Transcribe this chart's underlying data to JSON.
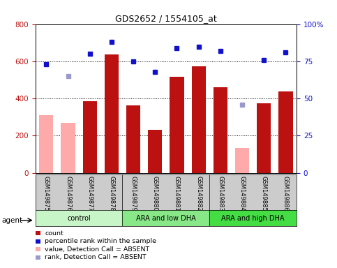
{
  "title": "GDS2652 / 1554105_at",
  "samples": [
    "GSM149875",
    "GSM149876",
    "GSM149877",
    "GSM149878",
    "GSM149879",
    "GSM149880",
    "GSM149881",
    "GSM149882",
    "GSM149883",
    "GSM149884",
    "GSM149885",
    "GSM149886"
  ],
  "groups": [
    {
      "label": "control",
      "start": 0,
      "end": 4,
      "color": "#c8f5c8"
    },
    {
      "label": "ARA and low DHA",
      "start": 4,
      "end": 8,
      "color": "#88e888"
    },
    {
      "label": "ARA and high DHA",
      "start": 8,
      "end": 12,
      "color": "#44dd44"
    }
  ],
  "bar_values": [
    null,
    null,
    385,
    638,
    363,
    232,
    515,
    572,
    462,
    null,
    375,
    437
  ],
  "bar_absent_values": [
    310,
    268,
    null,
    null,
    null,
    null,
    null,
    null,
    null,
    135,
    null,
    null
  ],
  "rank_pct": [
    73,
    null,
    80,
    88,
    75,
    68,
    84,
    85,
    82,
    null,
    76,
    81
  ],
  "rank_pct_absent": [
    null,
    65,
    null,
    null,
    null,
    null,
    null,
    null,
    null,
    46,
    null,
    null
  ],
  "ylim_left": [
    0,
    800
  ],
  "ylim_right": [
    0,
    100
  ],
  "yticks_left": [
    0,
    200,
    400,
    600,
    800
  ],
  "yticks_right": [
    0,
    25,
    50,
    75,
    100
  ],
  "ytick_labels_right": [
    "0",
    "25",
    "50",
    "75",
    "100%"
  ],
  "bar_color": "#bb1111",
  "bar_absent_color": "#ffaaaa",
  "rank_color": "#1111cc",
  "rank_absent_color": "#9999cc",
  "grid_color": "#000000",
  "label_bg_color": "#cccccc",
  "agent_label": "agent",
  "legend_items": [
    {
      "color": "#bb1111",
      "marker": "s",
      "label": "count"
    },
    {
      "color": "#1111cc",
      "marker": "s",
      "label": "percentile rank within the sample"
    },
    {
      "color": "#ffaaaa",
      "marker": "s",
      "label": "value, Detection Call = ABSENT"
    },
    {
      "color": "#9999cc",
      "marker": "s",
      "label": "rank, Detection Call = ABSENT"
    }
  ],
  "marker_size": 5
}
